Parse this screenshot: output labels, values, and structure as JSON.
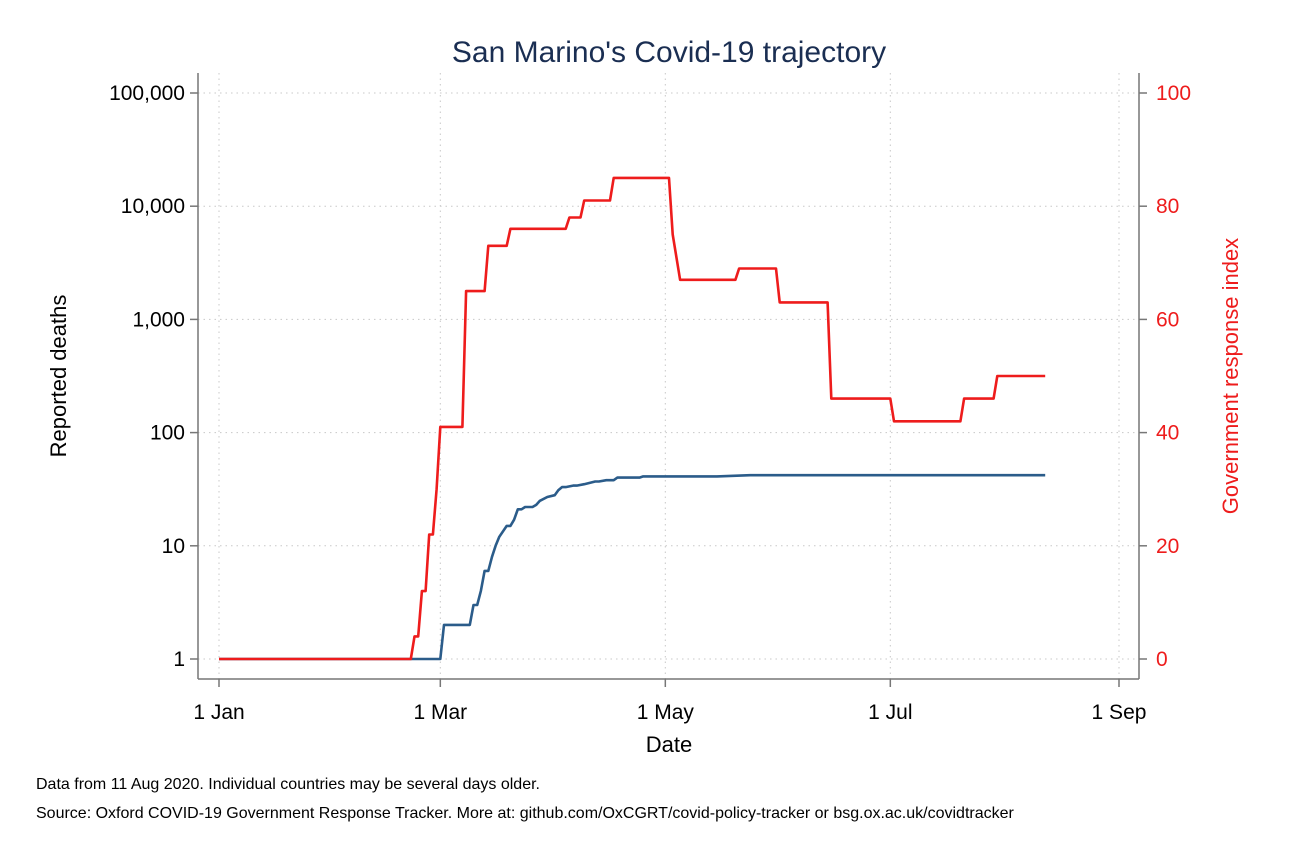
{
  "chart_data": {
    "type": "line",
    "title": "San Marino's Covid-19 trajectory",
    "xlabel": "Date",
    "ylabel_left": "Reported deaths",
    "ylabel_right": "Government response index",
    "x_ticks": [
      "1 Jan",
      "1 Mar",
      "1 May",
      "1 Jul",
      "1 Sep"
    ],
    "x_tick_days": [
      0,
      60,
      121,
      182,
      244
    ],
    "xlim_days": [
      0,
      244
    ],
    "y_left_scale": "log",
    "y_left_ticks": [
      "1",
      "10",
      "100",
      "1,000",
      "10,000",
      "100,000"
    ],
    "y_left_tick_values": [
      1,
      10,
      100,
      1000,
      10000,
      100000
    ],
    "y_right_ticks": [
      "0",
      "20",
      "40",
      "60",
      "80",
      "100"
    ],
    "y_right_tick_values": [
      0,
      20,
      40,
      60,
      80,
      100
    ],
    "grid": true,
    "series": [
      {
        "axis": "left",
        "color": "#2b5c8a",
        "x_days": [
          0,
          60,
          61,
          68,
          69,
          70,
          71,
          72,
          73,
          74,
          75,
          76,
          78,
          79,
          80,
          81,
          82,
          83,
          85,
          86,
          87,
          89,
          91,
          92,
          93,
          94,
          96,
          97,
          99,
          102,
          103,
          105,
          107,
          108,
          110,
          114,
          115,
          120,
          135,
          144,
          148,
          224
        ],
        "values": [
          1,
          1,
          2,
          2,
          3,
          3,
          4,
          6,
          6,
          8,
          10,
          12,
          15,
          15,
          17,
          21,
          21,
          22,
          22,
          23,
          25,
          27,
          28,
          31,
          33,
          33,
          34,
          34,
          35,
          37,
          37,
          38,
          38,
          40,
          40,
          40,
          41,
          41,
          41,
          42,
          42,
          42
        ]
      },
      {
        "axis": "right",
        "color": "#ee1c1c",
        "x_days": [
          0,
          52,
          53,
          54,
          55,
          56,
          57,
          58,
          59,
          60,
          61,
          66,
          67,
          72,
          73,
          78,
          79,
          94,
          95,
          98,
          99,
          106,
          107,
          122,
          123,
          125,
          140,
          141,
          151,
          152,
          165,
          166,
          182,
          183,
          201,
          202,
          210,
          211,
          224
        ],
        "values": [
          0,
          0,
          4,
          4,
          12,
          12,
          22,
          22,
          30,
          41,
          41,
          41,
          65,
          65,
          73,
          73,
          76,
          76,
          78,
          78,
          81,
          81,
          85,
          85,
          75,
          67,
          67,
          69,
          69,
          63,
          63,
          46,
          46,
          42,
          42,
          46,
          46,
          50,
          50
        ]
      }
    ]
  },
  "footnotes": {
    "line1": "Data from 11 Aug 2020. Individual countries may be several days older.",
    "line2": "Source: Oxford COVID-19 Government Response Tracker. More at: github.com/OxCGRT/covid-policy-tracker or bsg.ox.ac.uk/covidtracker"
  }
}
